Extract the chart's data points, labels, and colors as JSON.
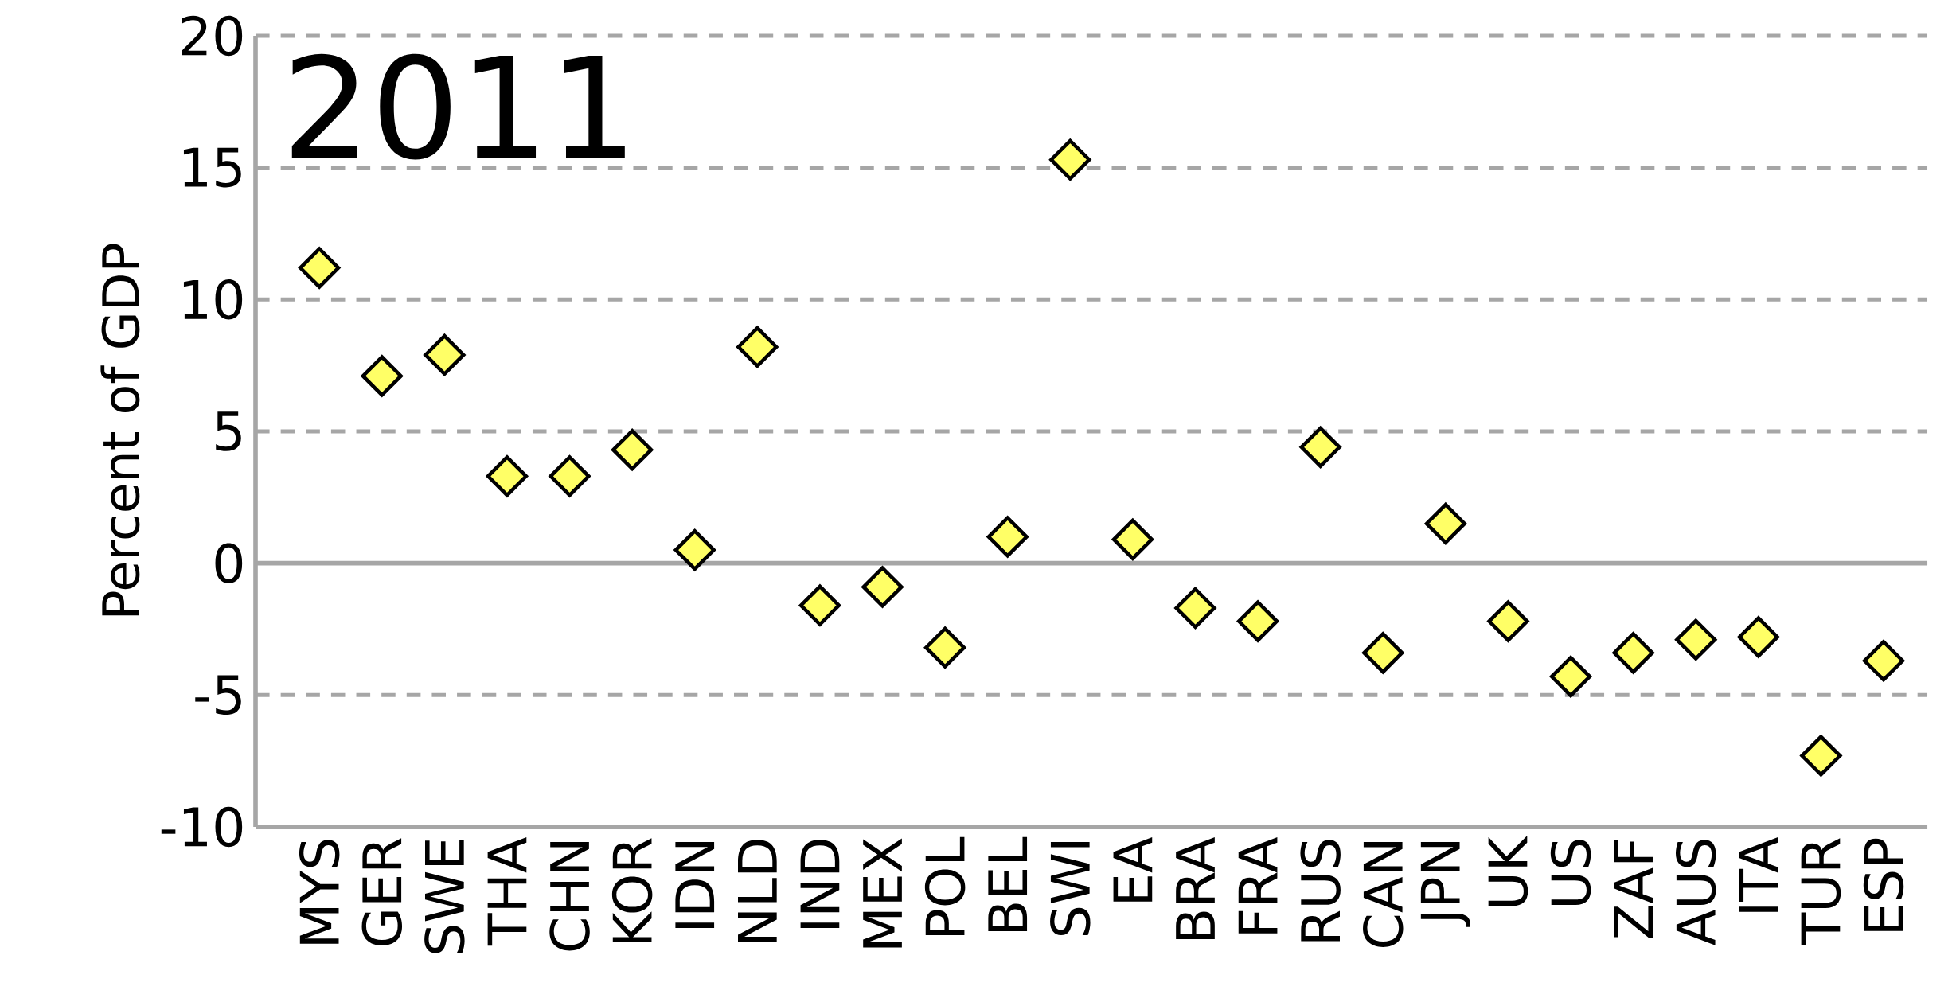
{
  "chart_data": {
    "type": "scatter",
    "title": "2011",
    "ylabel": "Percent of GDP",
    "categories": [
      "MYS",
      "GER",
      "SWE",
      "THA",
      "CHN",
      "KOR",
      "IDN",
      "NLD",
      "IND",
      "MEX",
      "POL",
      "BEL",
      "SWI",
      "EA",
      "BRA",
      "FRA",
      "RUS",
      "CAN",
      "JPN",
      "UK",
      "US",
      "ZAF",
      "AUS",
      "ITA",
      "TUR",
      "ESP"
    ],
    "values": [
      11.2,
      7.1,
      7.9,
      3.3,
      3.3,
      4.3,
      0.5,
      8.2,
      -1.6,
      -0.9,
      -3.2,
      1.0,
      15.3,
      0.9,
      -1.7,
      -2.2,
      4.4,
      -3.4,
      1.5,
      -2.2,
      -4.3,
      -3.4,
      -2.9,
      -2.8,
      -7.3,
      -3.7
    ],
    "color": "#ffff66",
    "marker": "diamond",
    "ylim": [
      -10,
      20
    ],
    "yticks": [
      -10,
      -5,
      0,
      5,
      10,
      15,
      20
    ],
    "grid": "y",
    "ref_lines": [
      {
        "axis": "y",
        "value": 0,
        "color": "#a6a6a6"
      }
    ]
  }
}
